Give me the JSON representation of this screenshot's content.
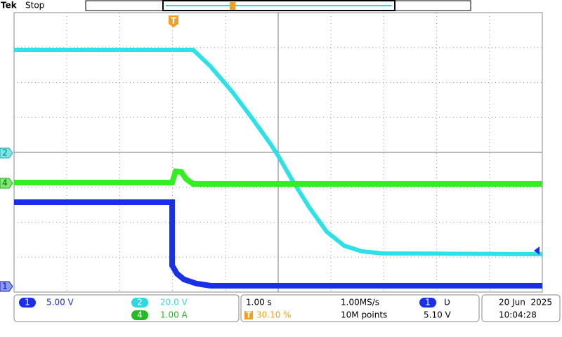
{
  "header": {
    "brand": "Tek",
    "state": "Stop"
  },
  "markers": {
    "trigger": "T",
    "ch2": "2",
    "ch4": "4",
    "ch1": "1"
  },
  "status": {
    "ch1": {
      "badge": "1",
      "scale": "5.00 V"
    },
    "ch2": {
      "badge": "2",
      "scale": "20.0 V"
    },
    "ch4": {
      "badge": "4",
      "scale": "1.00 A"
    },
    "timebase": "1.00 s",
    "sample_rate": "1.00MS/s",
    "trigger_badge": "T",
    "trigger_position": "30.10 %",
    "record_length": "10M points",
    "trigger_source": "1",
    "trigger_slope": "Ʋ",
    "trigger_level": "5.10 V",
    "date": "20 Jun  2025",
    "time": "10:04:28"
  }
}
